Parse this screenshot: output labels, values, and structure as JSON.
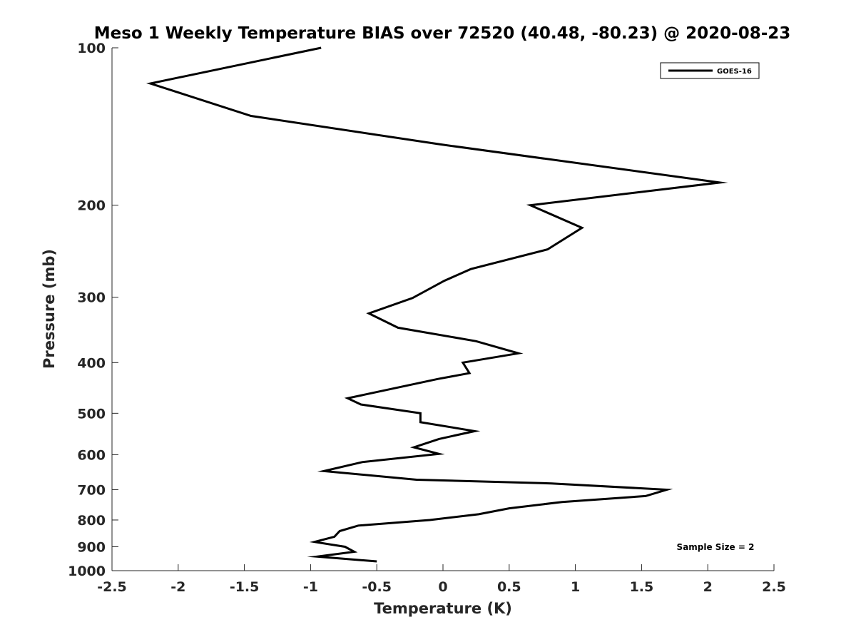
{
  "chart_data": {
    "type": "line",
    "title": "Meso 1 Weekly Temperature BIAS over 72520 (40.48, -80.23) @ 2020-08-23",
    "xlabel": "Temperature (K)",
    "ylabel": "Pressure (mb)",
    "xlim": [
      -2.5,
      2.5
    ],
    "ylim": [
      100,
      1000
    ],
    "y_scale": "log",
    "y_reversed": true,
    "x_ticks": [
      "-2.5",
      "-2",
      "-1.5",
      "-1",
      "-0.5",
      "0",
      "0.5",
      "1",
      "1.5",
      "2",
      "2.5"
    ],
    "y_ticks": [
      "100",
      "200",
      "300",
      "400",
      "500",
      "600",
      "700",
      "800",
      "900",
      "1000"
    ],
    "grid": false,
    "legend_position": "top-right",
    "annotation": "Sample Size = 2",
    "line_color": "#000000",
    "series": [
      {
        "name": "GOES-16",
        "points": [
          {
            "x": -0.92,
            "y": 100
          },
          {
            "x": -2.21,
            "y": 117
          },
          {
            "x": -1.45,
            "y": 135
          },
          {
            "x": -0.02,
            "y": 153
          },
          {
            "x": 2.09,
            "y": 181
          },
          {
            "x": 0.66,
            "y": 200
          },
          {
            "x": 1.05,
            "y": 221
          },
          {
            "x": 0.79,
            "y": 243
          },
          {
            "x": 0.21,
            "y": 265
          },
          {
            "x": 0.01,
            "y": 279
          },
          {
            "x": -0.23,
            "y": 301
          },
          {
            "x": -0.56,
            "y": 322
          },
          {
            "x": -0.34,
            "y": 343
          },
          {
            "x": 0.25,
            "y": 364
          },
          {
            "x": 0.57,
            "y": 384
          },
          {
            "x": 0.15,
            "y": 400
          },
          {
            "x": 0.2,
            "y": 419
          },
          {
            "x": -0.04,
            "y": 430
          },
          {
            "x": -0.72,
            "y": 468
          },
          {
            "x": -0.62,
            "y": 481
          },
          {
            "x": -0.17,
            "y": 500
          },
          {
            "x": -0.17,
            "y": 520
          },
          {
            "x": 0.24,
            "y": 541
          },
          {
            "x": -0.03,
            "y": 560
          },
          {
            "x": -0.22,
            "y": 581
          },
          {
            "x": -0.03,
            "y": 598
          },
          {
            "x": -0.61,
            "y": 620
          },
          {
            "x": -0.9,
            "y": 645
          },
          {
            "x": -0.2,
            "y": 670
          },
          {
            "x": 0.82,
            "y": 681
          },
          {
            "x": 1.69,
            "y": 700
          },
          {
            "x": 1.53,
            "y": 720
          },
          {
            "x": 0.9,
            "y": 739
          },
          {
            "x": 0.5,
            "y": 760
          },
          {
            "x": 0.27,
            "y": 780
          },
          {
            "x": -0.1,
            "y": 800
          },
          {
            "x": -0.64,
            "y": 820
          },
          {
            "x": -0.78,
            "y": 840
          },
          {
            "x": -0.82,
            "y": 861
          },
          {
            "x": -0.97,
            "y": 881
          },
          {
            "x": -0.74,
            "y": 900
          },
          {
            "x": -0.67,
            "y": 920
          },
          {
            "x": -0.95,
            "y": 940
          },
          {
            "x": -0.5,
            "y": 960
          }
        ]
      }
    ]
  }
}
